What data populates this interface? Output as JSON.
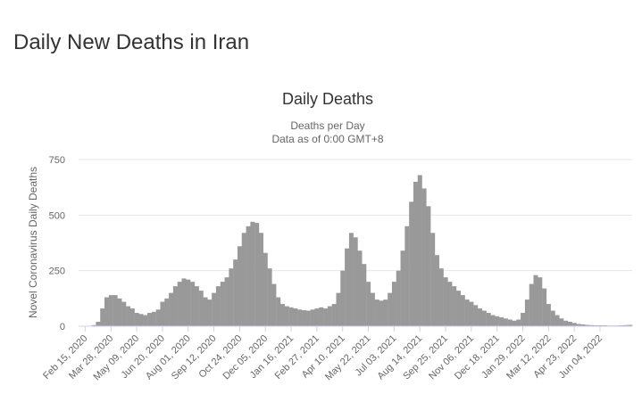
{
  "page_title": "Daily New Deaths in Iran",
  "chart_data": {
    "type": "bar",
    "title": "Daily Deaths",
    "subtitle": [
      "Deaths per Day",
      "Data as of 0:00 GMT+8"
    ],
    "y_label": "Novel Coronavirus Daily Deaths",
    "categories": [
      "Feb 15, 2020",
      null,
      null,
      null,
      null,
      null,
      "Mar 28, 2020",
      null,
      null,
      null,
      null,
      null,
      "May 09, 2020",
      null,
      null,
      null,
      null,
      null,
      "Jun 20, 2020",
      null,
      null,
      null,
      null,
      null,
      "Aug 01, 2020",
      null,
      null,
      null,
      null,
      null,
      "Sep 12, 2020",
      null,
      null,
      null,
      null,
      null,
      "Oct 24, 2020",
      null,
      null,
      null,
      null,
      null,
      "Dec 05, 2020",
      null,
      null,
      null,
      null,
      null,
      "Jan 16, 2021",
      null,
      null,
      null,
      null,
      null,
      "Feb 27, 2021",
      null,
      null,
      null,
      null,
      null,
      "Apr 10, 2021",
      null,
      null,
      null,
      null,
      null,
      "May 22, 2021",
      null,
      null,
      null,
      null,
      null,
      "Jul 03, 2021",
      null,
      null,
      null,
      null,
      null,
      "Aug 14, 2021",
      null,
      null,
      null,
      null,
      null,
      "Sep 25, 2021",
      null,
      null,
      null,
      null,
      null,
      "Nov 06, 2021",
      null,
      null,
      null,
      null,
      null,
      "Dec 18, 2021",
      null,
      null,
      null,
      null,
      null,
      "Jan 29, 2022",
      null,
      null,
      null,
      null,
      null,
      "Mar 12, 2022",
      null,
      null,
      null,
      null,
      null,
      "Apr 23, 2022",
      null,
      null,
      null,
      null,
      null,
      "Jun 04, 2022",
      null,
      null,
      null,
      null,
      null,
      null,
      null
    ],
    "values": [
      0,
      2,
      5,
      20,
      80,
      130,
      140,
      140,
      125,
      110,
      90,
      80,
      60,
      55,
      50,
      60,
      65,
      75,
      110,
      125,
      150,
      180,
      200,
      215,
      210,
      200,
      180,
      160,
      130,
      120,
      150,
      180,
      200,
      220,
      260,
      300,
      360,
      420,
      450,
      470,
      465,
      420,
      330,
      260,
      190,
      130,
      100,
      90,
      85,
      80,
      75,
      72,
      70,
      75,
      80,
      85,
      80,
      90,
      100,
      150,
      250,
      350,
      420,
      400,
      340,
      280,
      200,
      150,
      120,
      115,
      120,
      150,
      200,
      250,
      340,
      450,
      560,
      650,
      680,
      620,
      540,
      420,
      320,
      260,
      220,
      200,
      180,
      160,
      140,
      120,
      110,
      95,
      80,
      70,
      60,
      50,
      45,
      40,
      35,
      30,
      25,
      30,
      60,
      120,
      190,
      230,
      220,
      170,
      100,
      70,
      50,
      35,
      25,
      20,
      15,
      10,
      8,
      6,
      5,
      4,
      4,
      4,
      3,
      3,
      3,
      4,
      5,
      6
    ],
    "color": "#999999",
    "ylim": [
      0,
      750
    ],
    "yticks": [
      0,
      250,
      500,
      750
    ],
    "grid": true
  }
}
